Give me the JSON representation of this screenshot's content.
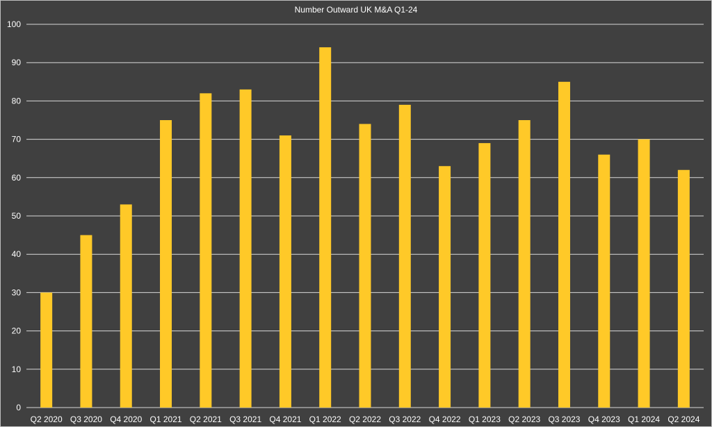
{
  "chart_data": {
    "type": "bar",
    "title": "Number Outward UK M&A Q1-24",
    "xlabel": "",
    "ylabel": "",
    "ylim": [
      0,
      100
    ],
    "yticks": [
      0,
      10,
      20,
      30,
      40,
      50,
      60,
      70,
      80,
      90,
      100
    ],
    "grid": true,
    "categories": [
      "Q2 2020",
      "Q3 2020",
      "Q4 2020",
      "Q1 2021",
      "Q2 2021",
      "Q3 2021",
      "Q4 2021",
      "Q1 2022",
      "Q2 2022",
      "Q3 2022",
      "Q4 2022",
      "Q1 2023",
      "Q2 2023",
      "Q3 2023",
      "Q4 2023",
      "Q1 2024",
      "Q2 2024"
    ],
    "series": [
      {
        "values": [
          30,
          45,
          53,
          75,
          82,
          83,
          71,
          94,
          74,
          79,
          63,
          69,
          75,
          85,
          66,
          70,
          62
        ],
        "color": "#ffc928"
      }
    ],
    "colors": {
      "background": "#404040",
      "gridline": "#d9d9d9",
      "text": "#ffffff"
    }
  }
}
